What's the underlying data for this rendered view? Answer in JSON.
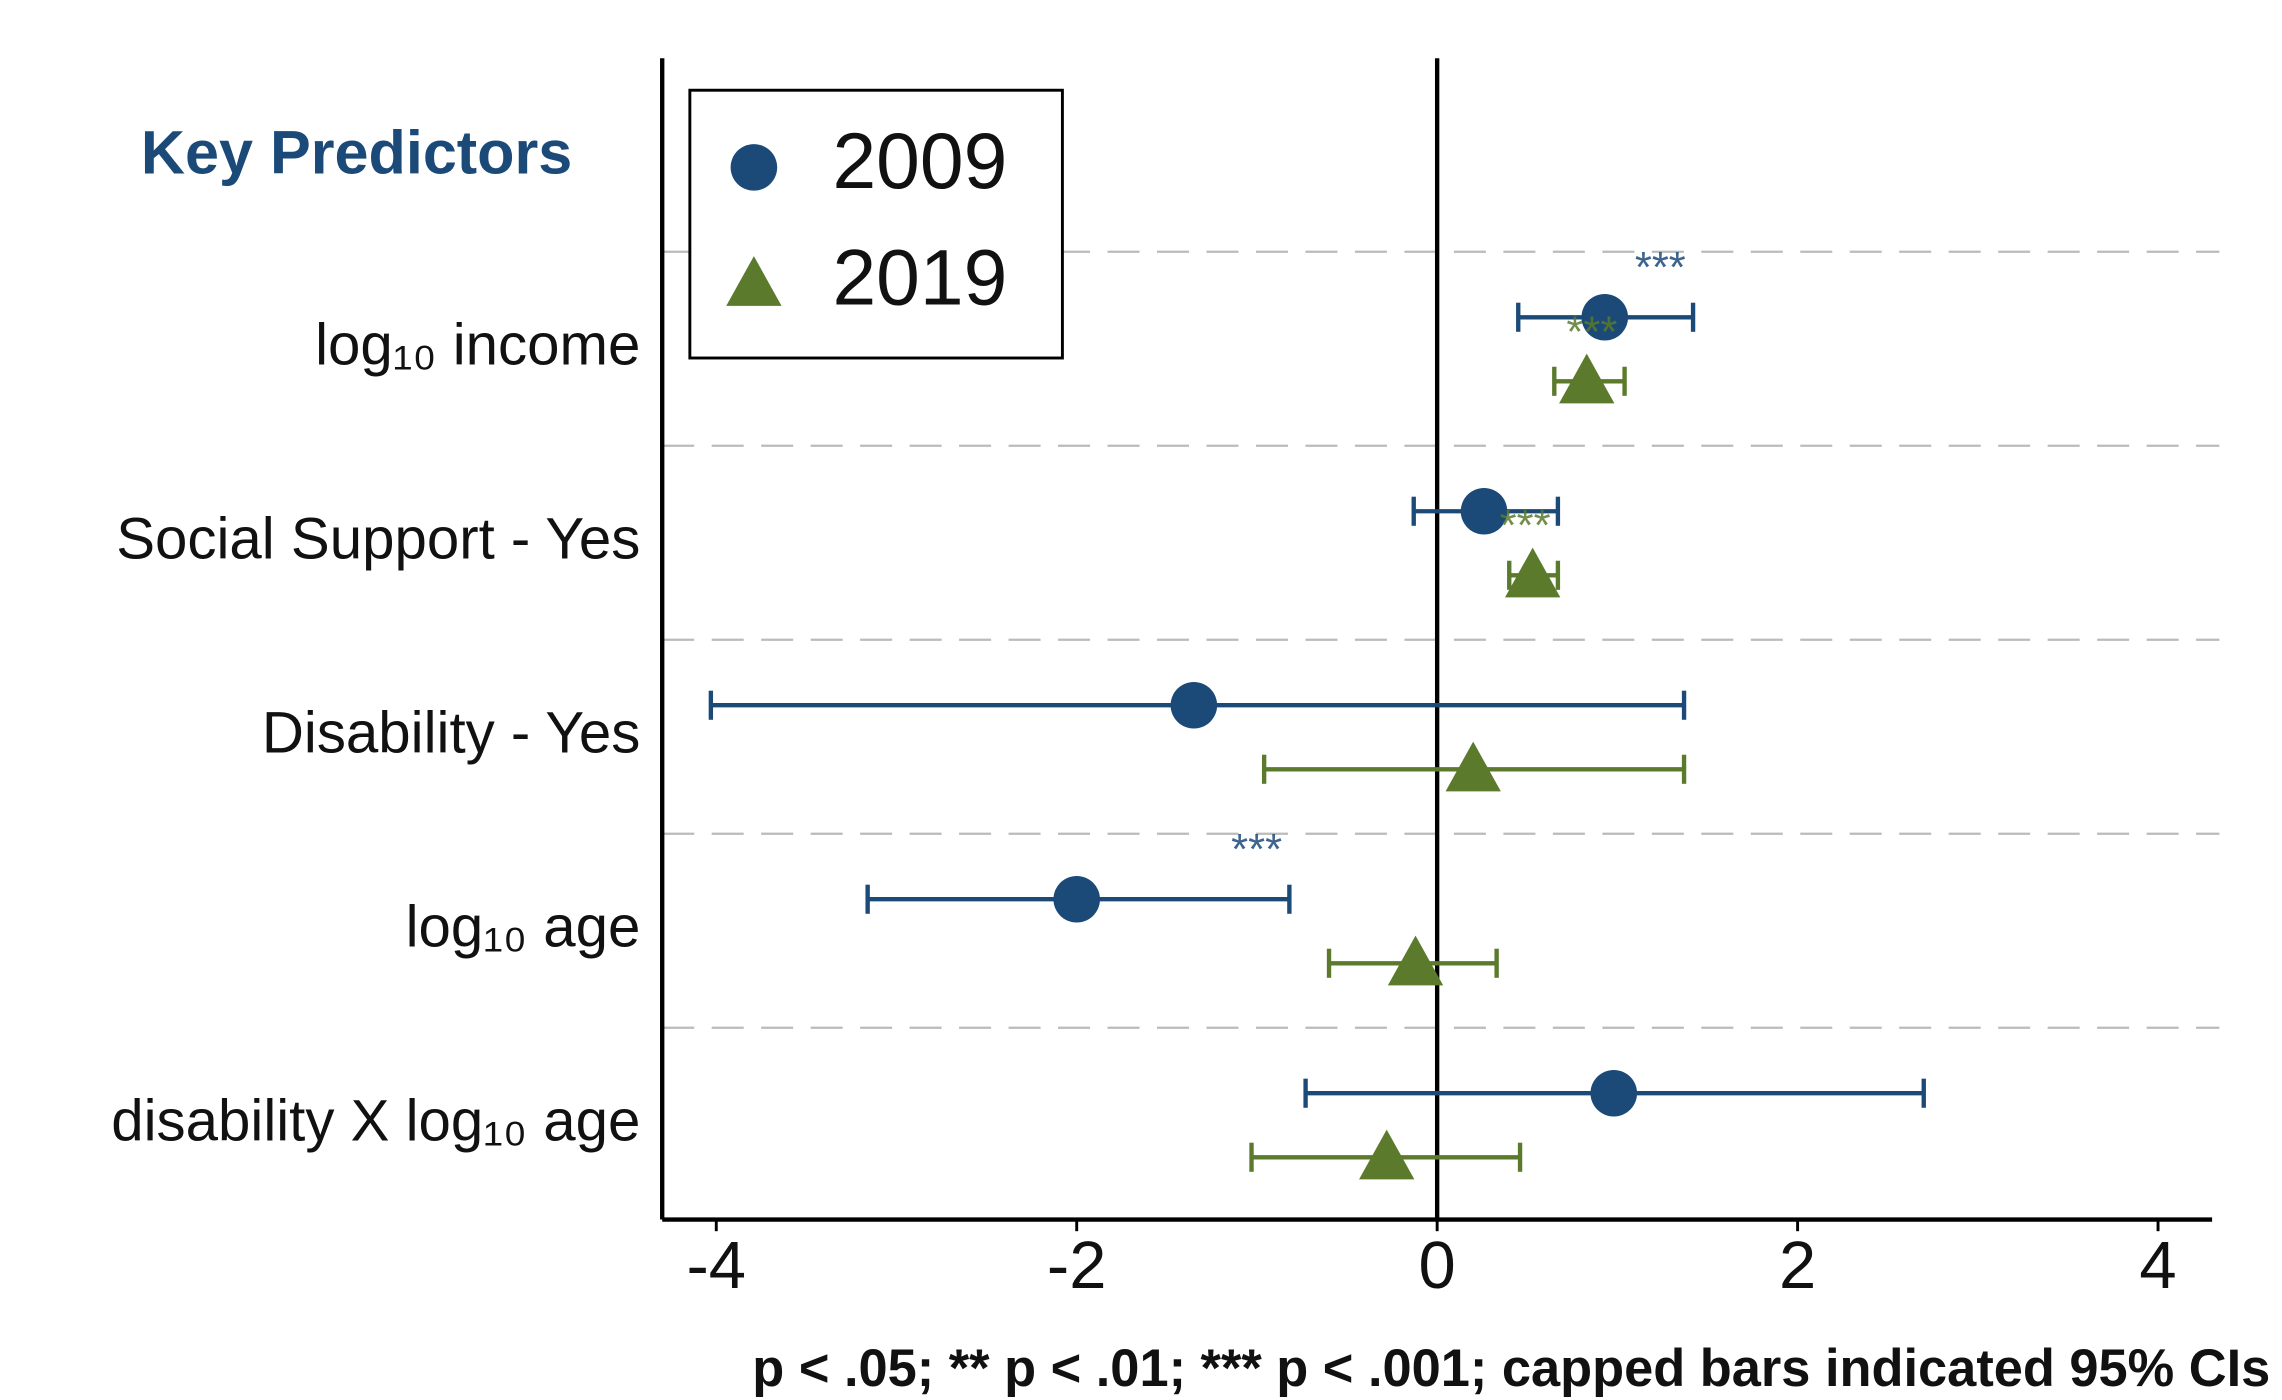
{
  "chart_data": {
    "type": "coefplot",
    "heading": "Key Predictors",
    "footnote": "p < .05;  ** p < .01;  *** p < .001; capped bars indicated 95% CIs",
    "categories": [
      "log₁₀ income",
      "Social Support - Yes",
      "Disability - Yes",
      "log₁₀ age",
      "disability X log₁₀ age"
    ],
    "series": [
      {
        "name": "2009",
        "color": "#1b4a78",
        "marker": "circle",
        "values": [
          0.93,
          0.26,
          -1.35,
          -2.0,
          0.98
        ],
        "ci_low": [
          0.45,
          -0.13,
          -4.03,
          -3.16,
          -0.73
        ],
        "ci_high": [
          1.42,
          0.67,
          1.37,
          -0.82,
          2.7
        ],
        "stars": [
          "***",
          null,
          null,
          "***",
          null
        ]
      },
      {
        "name": "2019",
        "color": "#5b7a2b",
        "marker": "triangle",
        "values": [
          0.83,
          0.53,
          0.2,
          -0.12,
          -0.28
        ],
        "ci_low": [
          0.65,
          0.4,
          -0.96,
          -0.6,
          -1.03
        ],
        "ci_high": [
          1.04,
          0.67,
          1.37,
          0.33,
          0.46
        ],
        "stars": [
          "***",
          "***",
          null,
          null,
          null
        ]
      }
    ],
    "xlim": [
      -4.3,
      4.3
    ],
    "xticks": [
      -4,
      -2,
      0,
      2,
      4
    ],
    "grid": true,
    "legend": "top-left"
  }
}
